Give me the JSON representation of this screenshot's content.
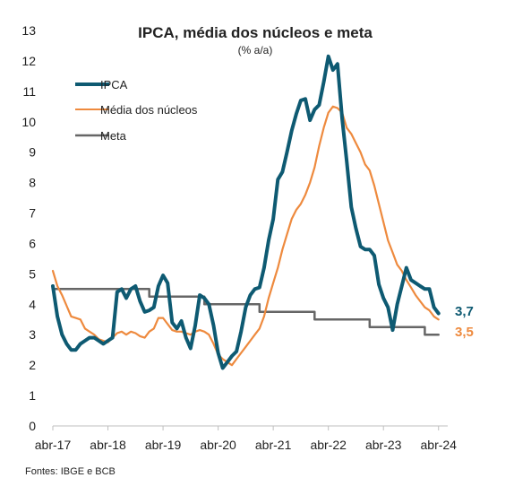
{
  "chart_data": {
    "type": "line",
    "title": "IPCA, média dos núcleos e meta",
    "subtitle": "(% a/a)",
    "source": "Fontes: IBGE e BCB",
    "x_tick_labels": [
      "abr-17",
      "abr-18",
      "abr-19",
      "abr-20",
      "abr-21",
      "abr-22",
      "abr-23",
      "abr-24"
    ],
    "x_range": [
      "2017-04",
      "2024-06"
    ],
    "y_ticks": [
      0,
      1,
      2,
      3,
      4,
      5,
      6,
      7,
      8,
      9,
      10,
      11,
      12,
      13
    ],
    "ylim": [
      0,
      13
    ],
    "grid": false,
    "legend_position": "top-left",
    "series": [
      {
        "name": "IPCA",
        "color": "#0e5a72",
        "end_label": "3,7",
        "points": [
          [
            "2017-04",
            4.6
          ],
          [
            "2017-05",
            3.6
          ],
          [
            "2017-06",
            3.0
          ],
          [
            "2017-07",
            2.7
          ],
          [
            "2017-08",
            2.5
          ],
          [
            "2017-09",
            2.5
          ],
          [
            "2017-10",
            2.7
          ],
          [
            "2017-11",
            2.8
          ],
          [
            "2017-12",
            2.9
          ],
          [
            "2018-01",
            2.9
          ],
          [
            "2018-02",
            2.8
          ],
          [
            "2018-03",
            2.7
          ],
          [
            "2018-04",
            2.8
          ],
          [
            "2018-05",
            2.9
          ],
          [
            "2018-06",
            4.4
          ],
          [
            "2018-07",
            4.5
          ],
          [
            "2018-08",
            4.2
          ],
          [
            "2018-09",
            4.5
          ],
          [
            "2018-10",
            4.6
          ],
          [
            "2018-11",
            4.1
          ],
          [
            "2018-12",
            3.75
          ],
          [
            "2019-01",
            3.8
          ],
          [
            "2019-02",
            3.9
          ],
          [
            "2019-03",
            4.6
          ],
          [
            "2019-04",
            4.95
          ],
          [
            "2019-05",
            4.7
          ],
          [
            "2019-06",
            3.4
          ],
          [
            "2019-07",
            3.2
          ],
          [
            "2019-08",
            3.45
          ],
          [
            "2019-09",
            2.9
          ],
          [
            "2019-10",
            2.55
          ],
          [
            "2019-11",
            3.3
          ],
          [
            "2019-12",
            4.3
          ],
          [
            "2020-01",
            4.2
          ],
          [
            "2020-02",
            4.0
          ],
          [
            "2020-03",
            3.3
          ],
          [
            "2020-04",
            2.4
          ],
          [
            "2020-05",
            1.9
          ],
          [
            "2020-06",
            2.1
          ],
          [
            "2020-07",
            2.3
          ],
          [
            "2020-08",
            2.45
          ],
          [
            "2020-09",
            3.1
          ],
          [
            "2020-10",
            3.9
          ],
          [
            "2020-11",
            4.3
          ],
          [
            "2020-12",
            4.5
          ],
          [
            "2021-01",
            4.55
          ],
          [
            "2021-02",
            5.2
          ],
          [
            "2021-03",
            6.1
          ],
          [
            "2021-04",
            6.8
          ],
          [
            "2021-05",
            8.1
          ],
          [
            "2021-06",
            8.35
          ],
          [
            "2021-07",
            9.0
          ],
          [
            "2021-08",
            9.7
          ],
          [
            "2021-09",
            10.25
          ],
          [
            "2021-10",
            10.7
          ],
          [
            "2021-11",
            10.75
          ],
          [
            "2021-12",
            10.05
          ],
          [
            "2022-01",
            10.4
          ],
          [
            "2022-02",
            10.55
          ],
          [
            "2022-03",
            11.3
          ],
          [
            "2022-04",
            12.15
          ],
          [
            "2022-05",
            11.7
          ],
          [
            "2022-06",
            11.9
          ],
          [
            "2022-07",
            10.1
          ],
          [
            "2022-08",
            8.7
          ],
          [
            "2022-09",
            7.2
          ],
          [
            "2022-10",
            6.5
          ],
          [
            "2022-11",
            5.9
          ],
          [
            "2022-12",
            5.8
          ],
          [
            "2023-01",
            5.8
          ],
          [
            "2023-02",
            5.6
          ],
          [
            "2023-03",
            4.65
          ],
          [
            "2023-04",
            4.2
          ],
          [
            "2023-05",
            3.9
          ],
          [
            "2023-06",
            3.15
          ],
          [
            "2023-07",
            4.0
          ],
          [
            "2023-08",
            4.6
          ],
          [
            "2023-09",
            5.2
          ],
          [
            "2023-10",
            4.8
          ],
          [
            "2023-11",
            4.7
          ],
          [
            "2023-12",
            4.6
          ],
          [
            "2024-01",
            4.5
          ],
          [
            "2024-02",
            4.5
          ],
          [
            "2024-03",
            3.9
          ],
          [
            "2024-04",
            3.7
          ]
        ]
      },
      {
        "name": "Média dos núcleos",
        "color": "#ee8a3e",
        "end_label": "3,5",
        "points": [
          [
            "2017-04",
            5.1
          ],
          [
            "2017-05",
            4.6
          ],
          [
            "2017-06",
            4.3
          ],
          [
            "2017-07",
            3.95
          ],
          [
            "2017-08",
            3.6
          ],
          [
            "2017-09",
            3.55
          ],
          [
            "2017-10",
            3.5
          ],
          [
            "2017-11",
            3.2
          ],
          [
            "2017-12",
            3.1
          ],
          [
            "2018-01",
            3.0
          ],
          [
            "2018-02",
            2.85
          ],
          [
            "2018-03",
            2.8
          ],
          [
            "2018-04",
            2.75
          ],
          [
            "2018-05",
            2.9
          ],
          [
            "2018-06",
            3.05
          ],
          [
            "2018-07",
            3.1
          ],
          [
            "2018-08",
            3.0
          ],
          [
            "2018-09",
            3.1
          ],
          [
            "2018-10",
            3.05
          ],
          [
            "2018-11",
            2.95
          ],
          [
            "2018-12",
            2.9
          ],
          [
            "2019-01",
            3.1
          ],
          [
            "2019-02",
            3.2
          ],
          [
            "2019-03",
            3.55
          ],
          [
            "2019-04",
            3.55
          ],
          [
            "2019-05",
            3.35
          ],
          [
            "2019-06",
            3.15
          ],
          [
            "2019-07",
            3.1
          ],
          [
            "2019-08",
            3.1
          ],
          [
            "2019-09",
            3.05
          ],
          [
            "2019-10",
            3.0
          ],
          [
            "2019-11",
            3.1
          ],
          [
            "2019-12",
            3.15
          ],
          [
            "2020-01",
            3.1
          ],
          [
            "2020-02",
            3.0
          ],
          [
            "2020-03",
            2.7
          ],
          [
            "2020-04",
            2.35
          ],
          [
            "2020-05",
            2.2
          ],
          [
            "2020-06",
            2.1
          ],
          [
            "2020-07",
            2.0
          ],
          [
            "2020-08",
            2.2
          ],
          [
            "2020-09",
            2.4
          ],
          [
            "2020-10",
            2.6
          ],
          [
            "2020-11",
            2.8
          ],
          [
            "2020-12",
            3.0
          ],
          [
            "2021-01",
            3.2
          ],
          [
            "2021-02",
            3.6
          ],
          [
            "2021-03",
            4.2
          ],
          [
            "2021-04",
            4.7
          ],
          [
            "2021-05",
            5.2
          ],
          [
            "2021-06",
            5.8
          ],
          [
            "2021-07",
            6.3
          ],
          [
            "2021-08",
            6.8
          ],
          [
            "2021-09",
            7.1
          ],
          [
            "2021-10",
            7.3
          ],
          [
            "2021-11",
            7.6
          ],
          [
            "2021-12",
            8.0
          ],
          [
            "2022-01",
            8.5
          ],
          [
            "2022-02",
            9.2
          ],
          [
            "2022-03",
            9.8
          ],
          [
            "2022-04",
            10.3
          ],
          [
            "2022-05",
            10.5
          ],
          [
            "2022-06",
            10.45
          ],
          [
            "2022-07",
            10.3
          ],
          [
            "2022-08",
            9.8
          ],
          [
            "2022-09",
            9.6
          ],
          [
            "2022-10",
            9.3
          ],
          [
            "2022-11",
            9.0
          ],
          [
            "2022-12",
            8.6
          ],
          [
            "2023-01",
            8.4
          ],
          [
            "2023-02",
            7.9
          ],
          [
            "2023-03",
            7.3
          ],
          [
            "2023-04",
            6.7
          ],
          [
            "2023-05",
            6.1
          ],
          [
            "2023-06",
            5.7
          ],
          [
            "2023-07",
            5.3
          ],
          [
            "2023-08",
            5.1
          ],
          [
            "2023-09",
            4.8
          ],
          [
            "2023-10",
            4.55
          ],
          [
            "2023-11",
            4.3
          ],
          [
            "2023-12",
            4.1
          ],
          [
            "2024-01",
            3.9
          ],
          [
            "2024-02",
            3.8
          ],
          [
            "2024-03",
            3.6
          ],
          [
            "2024-04",
            3.5
          ]
        ]
      },
      {
        "name": "Meta",
        "color": "#666666",
        "step": true,
        "points": [
          [
            "2017-04",
            4.5
          ],
          [
            "2019-01",
            4.5
          ],
          [
            "2019-01",
            4.25
          ],
          [
            "2020-01",
            4.25
          ],
          [
            "2020-01",
            4.0
          ],
          [
            "2021-01",
            4.0
          ],
          [
            "2021-01",
            3.75
          ],
          [
            "2022-01",
            3.75
          ],
          [
            "2022-01",
            3.5
          ],
          [
            "2023-01",
            3.5
          ],
          [
            "2023-01",
            3.25
          ],
          [
            "2024-01",
            3.25
          ],
          [
            "2024-01",
            3.0
          ],
          [
            "2024-04",
            3.0
          ]
        ]
      }
    ]
  }
}
